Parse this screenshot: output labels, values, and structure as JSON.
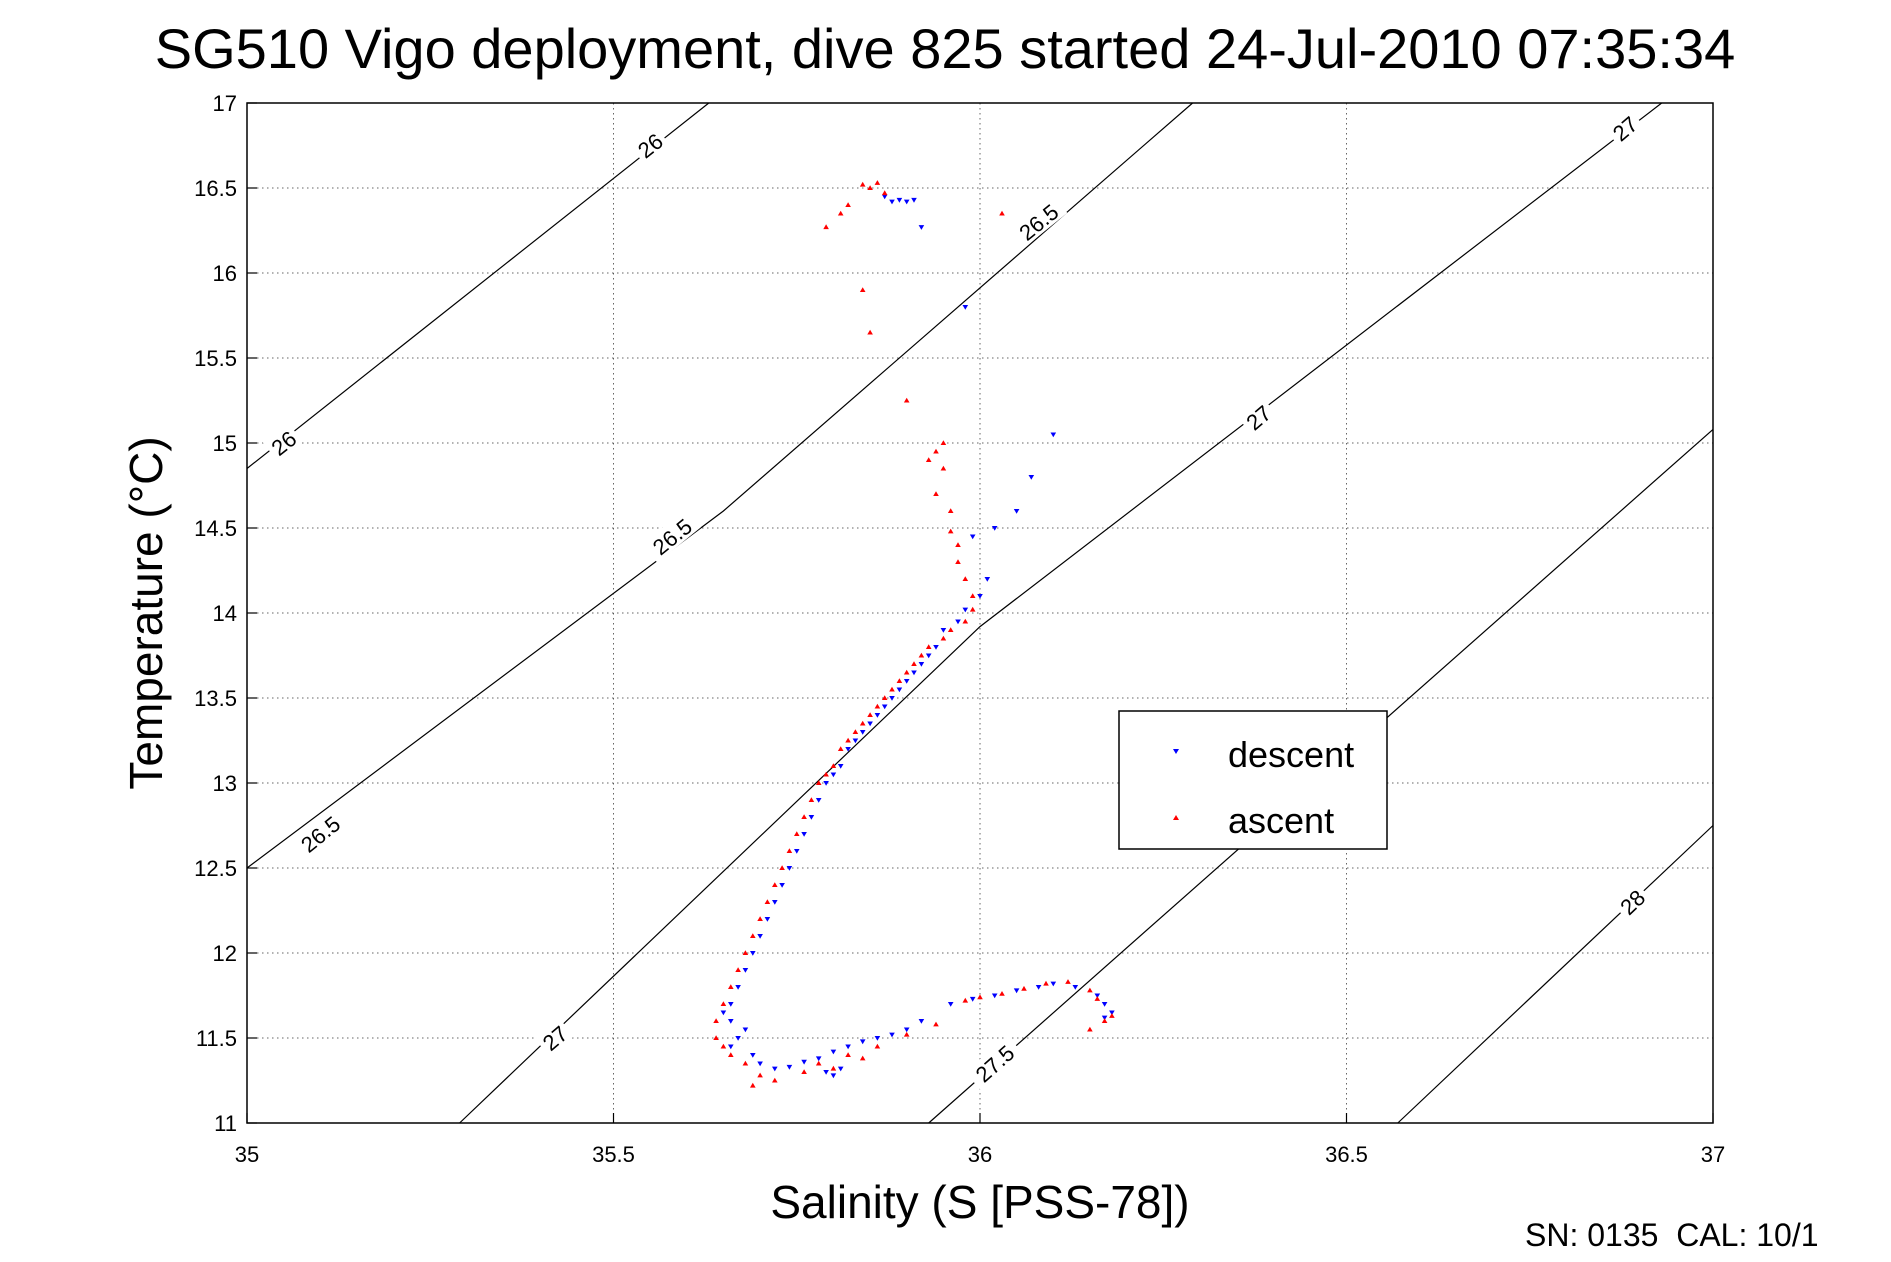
{
  "chart_data": {
    "type": "scatter",
    "title": "SG510 Vigo deployment, dive 825 started 24-Jul-2010 07:35:34",
    "xlabel": "Salinity (S [PSS-78])",
    "ylabel": "Temperature (°C)",
    "xlim": [
      35,
      37
    ],
    "ylim": [
      11,
      17
    ],
    "x_ticks": [
      "35",
      "35.5",
      "36",
      "36.5",
      "37"
    ],
    "y_ticks": [
      "11",
      "11.5",
      "12",
      "12.5",
      "13",
      "13.5",
      "14",
      "14.5",
      "15",
      "15.5",
      "16",
      "16.5",
      "17"
    ],
    "grid": true,
    "legend_position": "center-right",
    "footer": "SN: 0135  CAL: 10/1",
    "density_contours": [
      {
        "level": 26.0,
        "points": [
          [
            35.0,
            14.85
          ],
          [
            35.63,
            17.0
          ]
        ],
        "labels": [
          [
            35.05,
            15.0
          ],
          [
            35.55,
            16.75
          ]
        ]
      },
      {
        "level": 26.5,
        "points": [
          [
            35.0,
            12.5
          ],
          [
            35.65,
            14.6
          ],
          [
            36.29,
            17.0
          ]
        ],
        "labels": [
          [
            35.1,
            12.7
          ],
          [
            35.58,
            14.45
          ],
          [
            36.08,
            16.3
          ]
        ]
      },
      {
        "level": 27.0,
        "points": [
          [
            35.29,
            11.0
          ],
          [
            36.0,
            13.92
          ],
          [
            36.93,
            17.0
          ]
        ],
        "labels": [
          [
            35.42,
            11.5
          ],
          [
            36.38,
            15.15
          ],
          [
            36.88,
            16.85
          ]
        ]
      },
      {
        "level": 27.5,
        "points": [
          [
            35.93,
            11.0
          ],
          [
            37.0,
            15.08
          ]
        ],
        "labels": [
          [
            36.02,
            11.35
          ]
        ]
      },
      {
        "level": 28.0,
        "points": [
          [
            36.57,
            11.0
          ],
          [
            37.0,
            12.75
          ]
        ],
        "labels": [
          [
            36.89,
            12.3
          ]
        ]
      }
    ],
    "series": [
      {
        "name": "descent",
        "color": "#0000ff",
        "marker": "triangle-down",
        "points": [
          [
            35.88,
            16.42
          ],
          [
            35.89,
            16.43
          ],
          [
            35.9,
            16.42
          ],
          [
            35.91,
            16.43
          ],
          [
            35.87,
            16.45
          ],
          [
            35.92,
            16.27
          ],
          [
            35.98,
            15.8
          ],
          [
            36.1,
            15.05
          ],
          [
            36.07,
            14.8
          ],
          [
            36.05,
            14.6
          ],
          [
            36.02,
            14.5
          ],
          [
            35.99,
            14.45
          ],
          [
            36.01,
            14.2
          ],
          [
            36.0,
            14.1
          ],
          [
            35.98,
            14.02
          ],
          [
            35.97,
            13.95
          ],
          [
            35.95,
            13.9
          ],
          [
            35.94,
            13.8
          ],
          [
            35.93,
            13.75
          ],
          [
            35.92,
            13.7
          ],
          [
            35.91,
            13.65
          ],
          [
            35.9,
            13.6
          ],
          [
            35.89,
            13.55
          ],
          [
            35.88,
            13.5
          ],
          [
            35.87,
            13.45
          ],
          [
            35.86,
            13.4
          ],
          [
            35.85,
            13.35
          ],
          [
            35.84,
            13.3
          ],
          [
            35.83,
            13.25
          ],
          [
            35.82,
            13.2
          ],
          [
            35.81,
            13.1
          ],
          [
            35.8,
            13.05
          ],
          [
            35.79,
            13.0
          ],
          [
            35.78,
            12.9
          ],
          [
            35.77,
            12.8
          ],
          [
            35.76,
            12.7
          ],
          [
            35.75,
            12.6
          ],
          [
            35.74,
            12.5
          ],
          [
            35.73,
            12.4
          ],
          [
            35.72,
            12.3
          ],
          [
            35.71,
            12.2
          ],
          [
            35.7,
            12.1
          ],
          [
            35.69,
            12.0
          ],
          [
            35.68,
            11.9
          ],
          [
            35.67,
            11.8
          ],
          [
            35.66,
            11.7
          ],
          [
            35.65,
            11.65
          ],
          [
            35.66,
            11.6
          ],
          [
            35.68,
            11.55
          ],
          [
            35.67,
            11.5
          ],
          [
            35.66,
            11.45
          ],
          [
            35.69,
            11.4
          ],
          [
            35.7,
            11.35
          ],
          [
            35.72,
            11.32
          ],
          [
            35.74,
            11.33
          ],
          [
            35.76,
            11.36
          ],
          [
            35.78,
            11.38
          ],
          [
            35.8,
            11.42
          ],
          [
            35.82,
            11.45
          ],
          [
            35.84,
            11.48
          ],
          [
            35.86,
            11.5
          ],
          [
            35.88,
            11.52
          ],
          [
            35.9,
            11.55
          ],
          [
            35.92,
            11.6
          ],
          [
            35.96,
            11.7
          ],
          [
            35.99,
            11.73
          ],
          [
            36.02,
            11.75
          ],
          [
            36.05,
            11.78
          ],
          [
            36.08,
            11.8
          ],
          [
            36.1,
            11.82
          ],
          [
            36.13,
            11.8
          ],
          [
            36.16,
            11.75
          ],
          [
            36.17,
            11.7
          ],
          [
            36.18,
            11.65
          ],
          [
            36.17,
            11.62
          ],
          [
            35.79,
            11.3
          ],
          [
            35.8,
            11.28
          ],
          [
            35.81,
            11.32
          ]
        ]
      },
      {
        "name": "ascent",
        "color": "#ff0000",
        "marker": "triangle-up",
        "points": [
          [
            35.84,
            16.52
          ],
          [
            35.85,
            16.5
          ],
          [
            35.86,
            16.53
          ],
          [
            35.87,
            16.47
          ],
          [
            35.82,
            16.4
          ],
          [
            35.81,
            16.35
          ],
          [
            35.79,
            16.27
          ],
          [
            36.03,
            16.35
          ],
          [
            35.84,
            15.9
          ],
          [
            35.85,
            15.65
          ],
          [
            35.9,
            15.25
          ],
          [
            35.95,
            15.0
          ],
          [
            35.94,
            14.95
          ],
          [
            35.93,
            14.9
          ],
          [
            35.95,
            14.85
          ],
          [
            35.94,
            14.7
          ],
          [
            35.96,
            14.6
          ],
          [
            35.96,
            14.48
          ],
          [
            35.97,
            14.4
          ],
          [
            35.97,
            14.3
          ],
          [
            35.98,
            14.2
          ],
          [
            35.99,
            14.1
          ],
          [
            35.99,
            14.02
          ],
          [
            35.98,
            13.95
          ],
          [
            35.96,
            13.9
          ],
          [
            35.95,
            13.85
          ],
          [
            35.93,
            13.8
          ],
          [
            35.92,
            13.75
          ],
          [
            35.91,
            13.7
          ],
          [
            35.9,
            13.65
          ],
          [
            35.89,
            13.6
          ],
          [
            35.88,
            13.55
          ],
          [
            35.87,
            13.5
          ],
          [
            35.86,
            13.45
          ],
          [
            35.85,
            13.4
          ],
          [
            35.84,
            13.35
          ],
          [
            35.83,
            13.3
          ],
          [
            35.82,
            13.25
          ],
          [
            35.81,
            13.2
          ],
          [
            35.8,
            13.1
          ],
          [
            35.79,
            13.05
          ],
          [
            35.78,
            13.0
          ],
          [
            35.77,
            12.9
          ],
          [
            35.76,
            12.8
          ],
          [
            35.75,
            12.7
          ],
          [
            35.74,
            12.6
          ],
          [
            35.73,
            12.5
          ],
          [
            35.72,
            12.4
          ],
          [
            35.71,
            12.3
          ],
          [
            35.7,
            12.2
          ],
          [
            35.69,
            12.1
          ],
          [
            35.68,
            12.0
          ],
          [
            35.67,
            11.9
          ],
          [
            35.66,
            11.8
          ],
          [
            35.65,
            11.7
          ],
          [
            35.64,
            11.6
          ],
          [
            35.64,
            11.5
          ],
          [
            35.65,
            11.45
          ],
          [
            35.66,
            11.4
          ],
          [
            35.68,
            11.35
          ],
          [
            35.7,
            11.28
          ],
          [
            35.72,
            11.25
          ],
          [
            35.69,
            11.22
          ],
          [
            35.76,
            11.3
          ],
          [
            35.78,
            11.35
          ],
          [
            35.8,
            11.32
          ],
          [
            35.82,
            11.4
          ],
          [
            35.84,
            11.38
          ],
          [
            35.86,
            11.45
          ],
          [
            35.9,
            11.52
          ],
          [
            35.94,
            11.58
          ],
          [
            35.98,
            11.72
          ],
          [
            36.0,
            11.74
          ],
          [
            36.03,
            11.76
          ],
          [
            36.06,
            11.79
          ],
          [
            36.09,
            11.82
          ],
          [
            36.12,
            11.83
          ],
          [
            36.15,
            11.78
          ],
          [
            36.16,
            11.73
          ],
          [
            36.18,
            11.63
          ],
          [
            36.15,
            11.55
          ],
          [
            36.17,
            11.6
          ]
        ]
      }
    ]
  }
}
